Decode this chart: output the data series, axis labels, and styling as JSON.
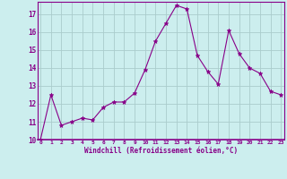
{
  "x": [
    0,
    1,
    2,
    3,
    4,
    5,
    6,
    7,
    8,
    9,
    10,
    11,
    12,
    13,
    14,
    15,
    16,
    17,
    18,
    19,
    20,
    21,
    22,
    23
  ],
  "y": [
    10.0,
    12.5,
    10.8,
    11.0,
    11.2,
    11.1,
    11.8,
    12.1,
    12.1,
    12.6,
    13.9,
    15.5,
    16.5,
    17.5,
    17.3,
    14.7,
    13.8,
    13.1,
    16.1,
    14.8,
    14.0,
    13.7,
    12.7,
    12.5
  ],
  "xlabel": "Windchill (Refroidissement éolien,°C)",
  "ylim_min": 10,
  "ylim_max": 17.7,
  "yticks": [
    10,
    11,
    12,
    13,
    14,
    15,
    16,
    17
  ],
  "xticks": [
    0,
    1,
    2,
    3,
    4,
    5,
    6,
    7,
    8,
    9,
    10,
    11,
    12,
    13,
    14,
    15,
    16,
    17,
    18,
    19,
    20,
    21,
    22,
    23
  ],
  "xtick_labels": [
    "0",
    "1",
    "2",
    "3",
    "4",
    "5",
    "6",
    "7",
    "8",
    "9",
    "10",
    "11",
    "12",
    "13",
    "14",
    "15",
    "16",
    "17",
    "18",
    "19",
    "20",
    "21",
    "22",
    "23"
  ],
  "line_color": "#880088",
  "marker_color": "#880088",
  "bg_color": "#cceeee",
  "grid_color": "#aacccc",
  "tick_color": "#880088",
  "label_color": "#880088",
  "spine_color": "#880088"
}
